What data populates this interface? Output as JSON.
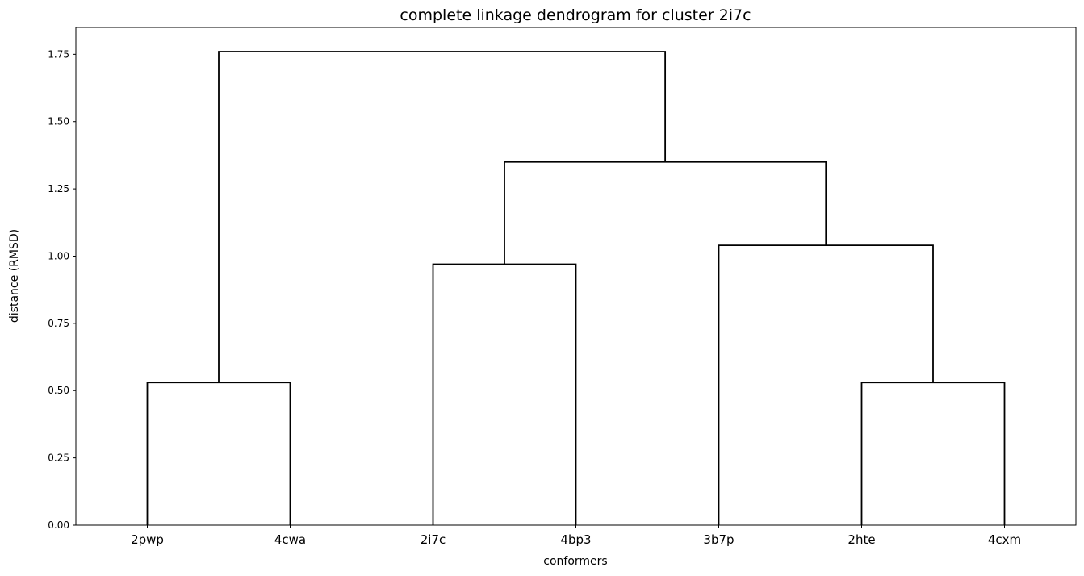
{
  "chart_data": {
    "type": "dendrogram",
    "title": "complete linkage dendrogram for cluster 2i7c",
    "xlabel": "conformers",
    "ylabel": "distance (RMSD)",
    "leaves": [
      "2pwp",
      "4cwa",
      "2i7c",
      "4bp3",
      "3b7p",
      "2hte",
      "4cxm"
    ],
    "ylim": [
      0,
      1.85
    ],
    "yticks": [
      0.0,
      0.25,
      0.5,
      0.75,
      1.0,
      1.25,
      1.5,
      1.75
    ],
    "ytick_labels": [
      "0.00",
      "0.25",
      "0.50",
      "0.75",
      "1.00",
      "1.25",
      "1.50",
      "1.75"
    ],
    "merges": [
      {
        "left": "2pwp",
        "right": "4cwa",
        "height": 0.53
      },
      {
        "left": "2i7c",
        "right": "4bp3",
        "height": 0.97
      },
      {
        "left": "2hte",
        "right": "4cxm",
        "height": 0.53
      },
      {
        "left": "3b7p",
        "right": "(2hte, 4cxm)",
        "height": 1.04
      },
      {
        "left": "(2i7c, 4bp3)",
        "right": "(3b7p, 2hte, 4cxm)",
        "height": 1.35
      },
      {
        "left": "(2pwp, 4cwa)",
        "right": "(2i7c, 4bp3, 3b7p, 2hte, 4cxm)",
        "height": 1.76
      }
    ],
    "link_color": "#000000",
    "grid": false,
    "legend": "none"
  }
}
